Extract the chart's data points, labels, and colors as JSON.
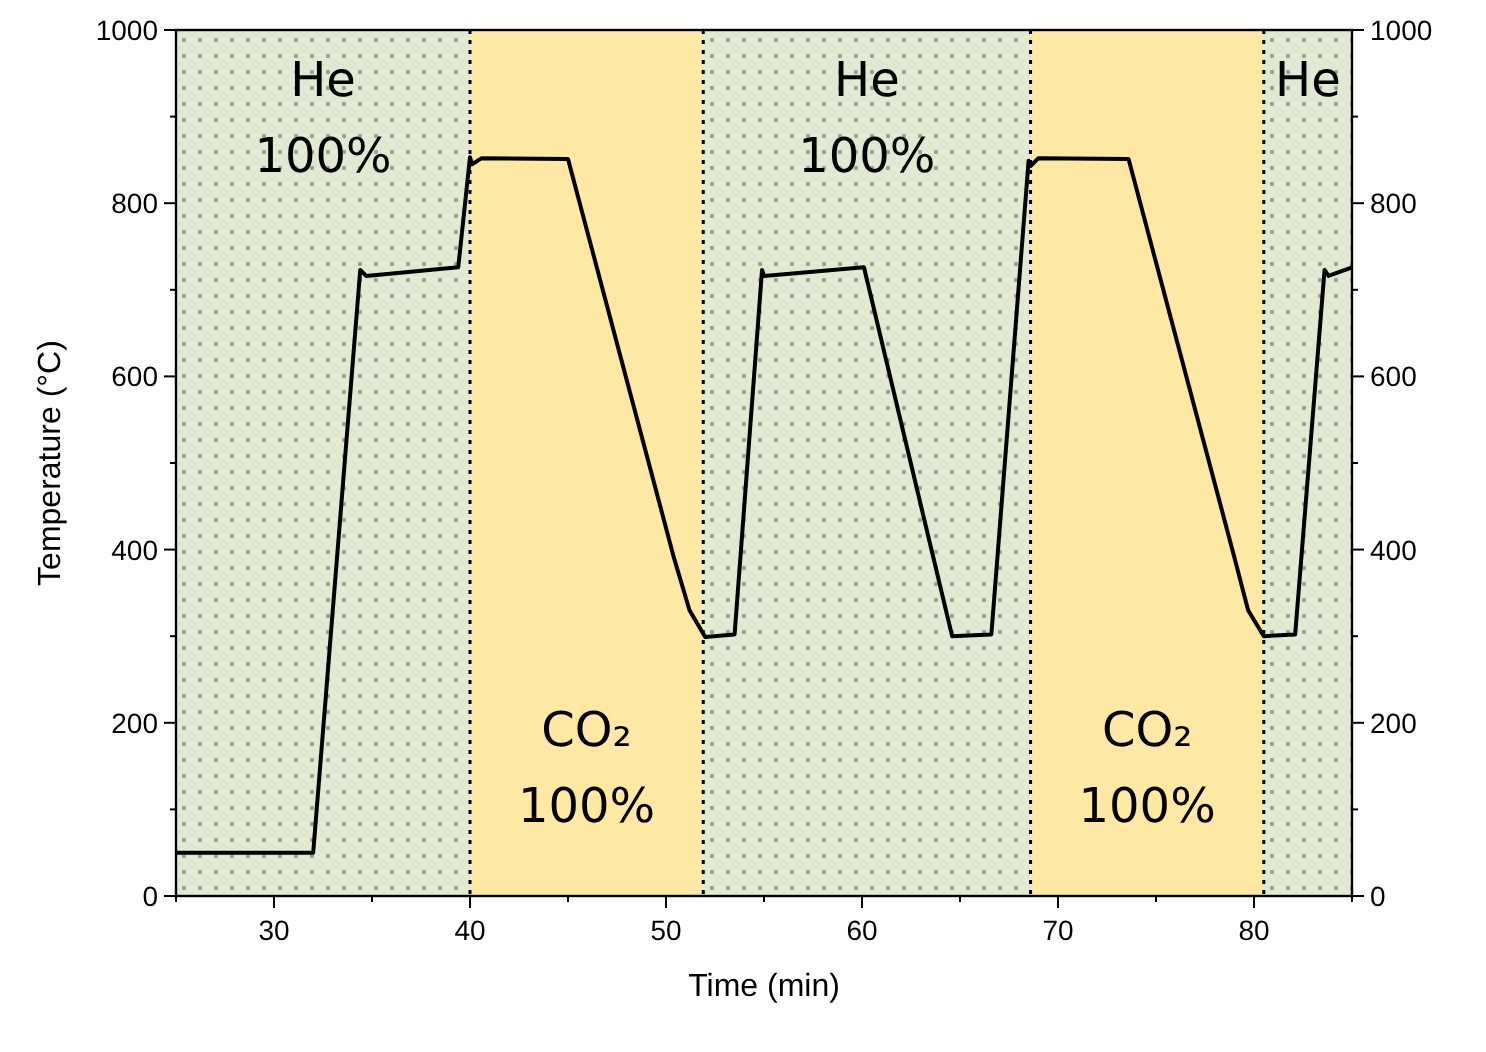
{
  "chart_data": {
    "type": "line",
    "xlabel": "Time (min)",
    "ylabel": "Temperature (°C)",
    "xlim": [
      25,
      85
    ],
    "xticks": [
      30,
      40,
      50,
      60,
      70,
      80
    ],
    "ylim": [
      0,
      1000
    ],
    "yticks": [
      0,
      200,
      400,
      600,
      800,
      1000
    ],
    "y2lim": [
      0,
      1000
    ],
    "y2ticks": [
      0,
      200,
      400,
      600,
      800,
      1000
    ],
    "grid": false,
    "line_style": "solid",
    "bands": [
      {
        "axis": "x",
        "from": 25,
        "to": 40,
        "label": "He\n100%",
        "color": "#e2e9d3"
      },
      {
        "axis": "x",
        "from": 40,
        "to": 51.9,
        "label": "CO₂\n100%",
        "color": "#fde8a4"
      },
      {
        "axis": "x",
        "from": 51.9,
        "to": 68.6,
        "label": "He\n100%",
        "color": "#e2e9d3"
      },
      {
        "axis": "x",
        "from": 68.6,
        "to": 80.5,
        "label": "CO₂\n100%",
        "color": "#fde8a4"
      },
      {
        "axis": "x",
        "from": 80.5,
        "to": 85,
        "label": "He",
        "color": "#e2e9d3"
      }
    ],
    "ref_lines": [
      {
        "axis": "x",
        "value": 40,
        "line_style": "dotted"
      },
      {
        "axis": "x",
        "value": 51.9,
        "line_style": "dotted"
      },
      {
        "axis": "x",
        "value": 68.6,
        "line_style": "dotted"
      },
      {
        "axis": "x",
        "value": 80.5,
        "line_style": "dotted"
      }
    ],
    "series": [
      {
        "color": "#000000",
        "x": [
          25,
          32.0,
          34.4,
          34.7,
          39.4,
          40.0,
          40.1,
          40.6,
          45.0,
          50.4,
          51.2,
          52.0,
          53.5,
          54.9,
          55.0,
          60.1,
          64.6,
          66.6,
          68.5,
          68.6,
          69.0,
          73.6,
          79.0,
          79.7,
          80.5,
          82.1,
          83.6,
          83.8,
          85
        ],
        "values": [
          50,
          50,
          723,
          716,
          726,
          853,
          845,
          852,
          851,
          391,
          330,
          299,
          302,
          723,
          716,
          726,
          300,
          302,
          849,
          843,
          852,
          851,
          391,
          330,
          300,
          302,
          723,
          716,
          726
        ]
      }
    ]
  }
}
